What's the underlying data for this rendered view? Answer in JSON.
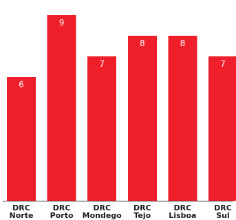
{
  "colors": {
    "bar": "#ee1f2b",
    "axis": "#333333",
    "value_text": "#ffffff",
    "category_text": "#1a1a1a"
  },
  "chart_data": {
    "type": "bar",
    "categories": [
      [
        "DRC",
        "Norte"
      ],
      [
        "DRC",
        "Porto"
      ],
      [
        "DRC",
        "Mondego"
      ],
      [
        "DRC",
        "Tejo"
      ],
      [
        "DRC",
        "Lisboa"
      ],
      [
        "DRC",
        "Sul"
      ]
    ],
    "values": [
      6,
      9,
      7,
      8,
      8,
      7
    ],
    "data_labels": [
      "6",
      "9",
      "7",
      "8",
      "8",
      "7"
    ],
    "ylim": [
      0,
      9.4
    ],
    "grid": false,
    "legend": "none",
    "title": "",
    "xlabel": "",
    "ylabel": ""
  }
}
